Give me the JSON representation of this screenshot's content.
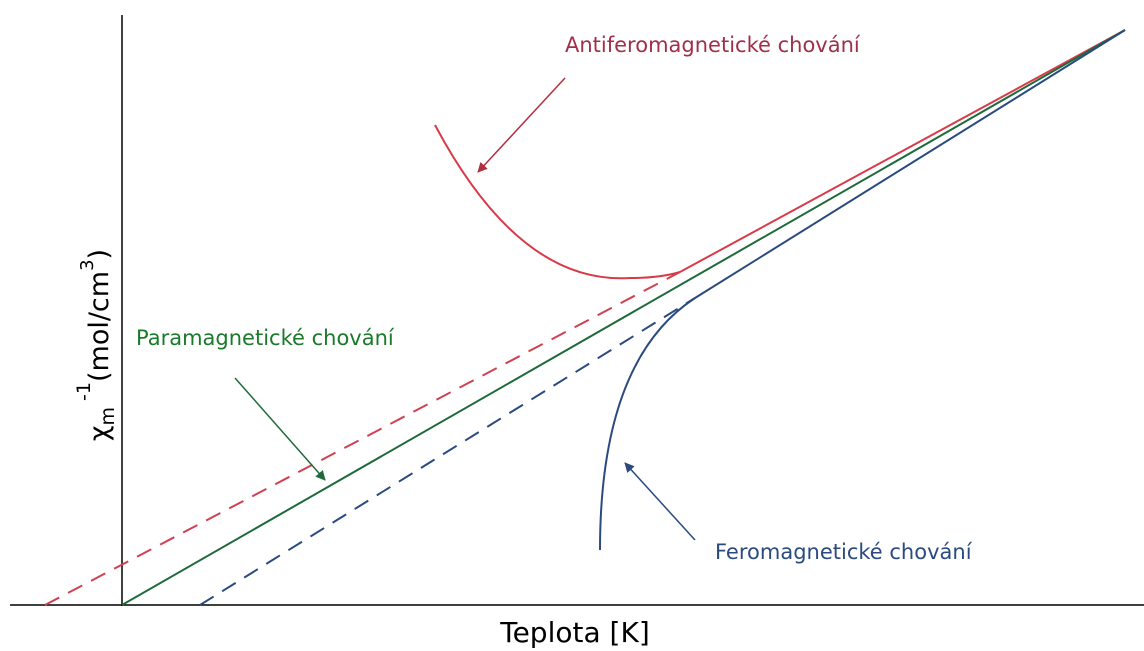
{
  "labels": {
    "antiferromagnetic": "Antiferomagnetické chování",
    "paramagnetic": "Paramagnetické chování",
    "ferromagnetic": "Feromagnetické chování"
  },
  "x_axis_label": "Teplota [K]",
  "y_axis_label": {
    "symbol": "χ",
    "subscript": "m",
    "exponent": "-1",
    "unit": "(mol/cm",
    "unit_exponent": "3",
    "close": ")"
  }
}
